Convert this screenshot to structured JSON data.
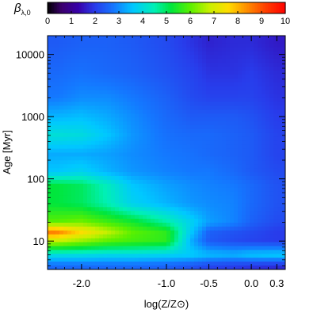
{
  "chart_data": {
    "type": "heatmap",
    "title": "",
    "xlabel": "log(Z/Z⊙)",
    "ylabel": "Age [Myr]",
    "colorbar": {
      "label": "β",
      "label_sub": "λ,0",
      "range": [
        0,
        10
      ],
      "ticks": [
        "0",
        "1",
        "2",
        "3",
        "4",
        "5",
        "6",
        "7",
        "8",
        "9",
        "10"
      ],
      "placement": "top"
    },
    "x_axis": {
      "range": [
        -2.4,
        0.4
      ],
      "ticks": [
        {
          "value": -2.0,
          "label": "-2.0"
        },
        {
          "value": -1.0,
          "label": "-1.0"
        },
        {
          "value": -0.5,
          "label": "-0.5"
        },
        {
          "value": 0.0,
          "label": "0.0"
        },
        {
          "value": 0.3,
          "label": "0.3"
        }
      ]
    },
    "y_axis": {
      "scale": "log",
      "range": [
        3.5,
        20000
      ],
      "ticks": [
        {
          "value": 10,
          "label": "10"
        },
        {
          "value": 100,
          "label": "100"
        },
        {
          "value": 1000,
          "label": "1000"
        },
        {
          "value": 10000,
          "label": "10000"
        }
      ]
    },
    "x": [
      -2.3,
      -2.0,
      -1.7,
      -1.4,
      -1.0,
      -0.7,
      -0.5,
      -0.2,
      0.0,
      0.3
    ],
    "y": [
      4,
      6,
      10,
      14,
      20,
      40,
      80,
      130,
      250,
      500,
      1000,
      2000,
      5000,
      15000
    ],
    "values": [
      [
        2.6,
        2.6,
        2.6,
        2.6,
        2.5,
        2.3,
        2.1,
        2.0,
        1.9,
        1.8
      ],
      [
        4.0,
        4.0,
        3.9,
        3.9,
        3.8,
        3.7,
        3.5,
        3.4,
        3.6,
        3.7
      ],
      [
        6.8,
        6.4,
        6.0,
        5.8,
        5.6,
        3.3,
        2.4,
        2.2,
        2.1,
        2.0
      ],
      [
        8.6,
        7.6,
        6.8,
        6.0,
        5.6,
        3.6,
        2.5,
        2.3,
        2.2,
        2.0
      ],
      [
        6.0,
        6.2,
        5.8,
        5.4,
        4.6,
        3.8,
        3.2,
        2.9,
        2.5,
        2.2
      ],
      [
        5.2,
        5.0,
        4.5,
        3.8,
        3.4,
        3.1,
        3.0,
        2.9,
        2.6,
        2.3
      ],
      [
        5.2,
        5.0,
        4.4,
        3.6,
        3.2,
        3.0,
        2.9,
        2.8,
        2.6,
        2.3
      ],
      [
        3.6,
        3.8,
        3.4,
        3.1,
        2.9,
        2.8,
        2.8,
        2.6,
        2.4,
        2.2
      ],
      [
        3.3,
        3.3,
        3.2,
        3.0,
        2.8,
        2.7,
        2.6,
        2.5,
        2.4,
        2.1
      ],
      [
        4.1,
        4.0,
        3.6,
        3.1,
        2.7,
        2.6,
        2.6,
        2.5,
        2.4,
        2.1
      ],
      [
        3.4,
        3.5,
        3.3,
        3.0,
        2.6,
        2.4,
        2.4,
        2.4,
        2.3,
        2.0
      ],
      [
        2.8,
        3.0,
        3.0,
        2.8,
        2.5,
        2.2,
        2.1,
        2.1,
        2.1,
        1.9
      ],
      [
        2.6,
        2.7,
        2.6,
        2.5,
        2.3,
        2.1,
        1.9,
        1.9,
        2.0,
        1.8
      ],
      [
        2.4,
        2.5,
        2.5,
        2.4,
        2.2,
        1.9,
        1.7,
        1.8,
        1.8,
        1.6
      ]
    ]
  }
}
